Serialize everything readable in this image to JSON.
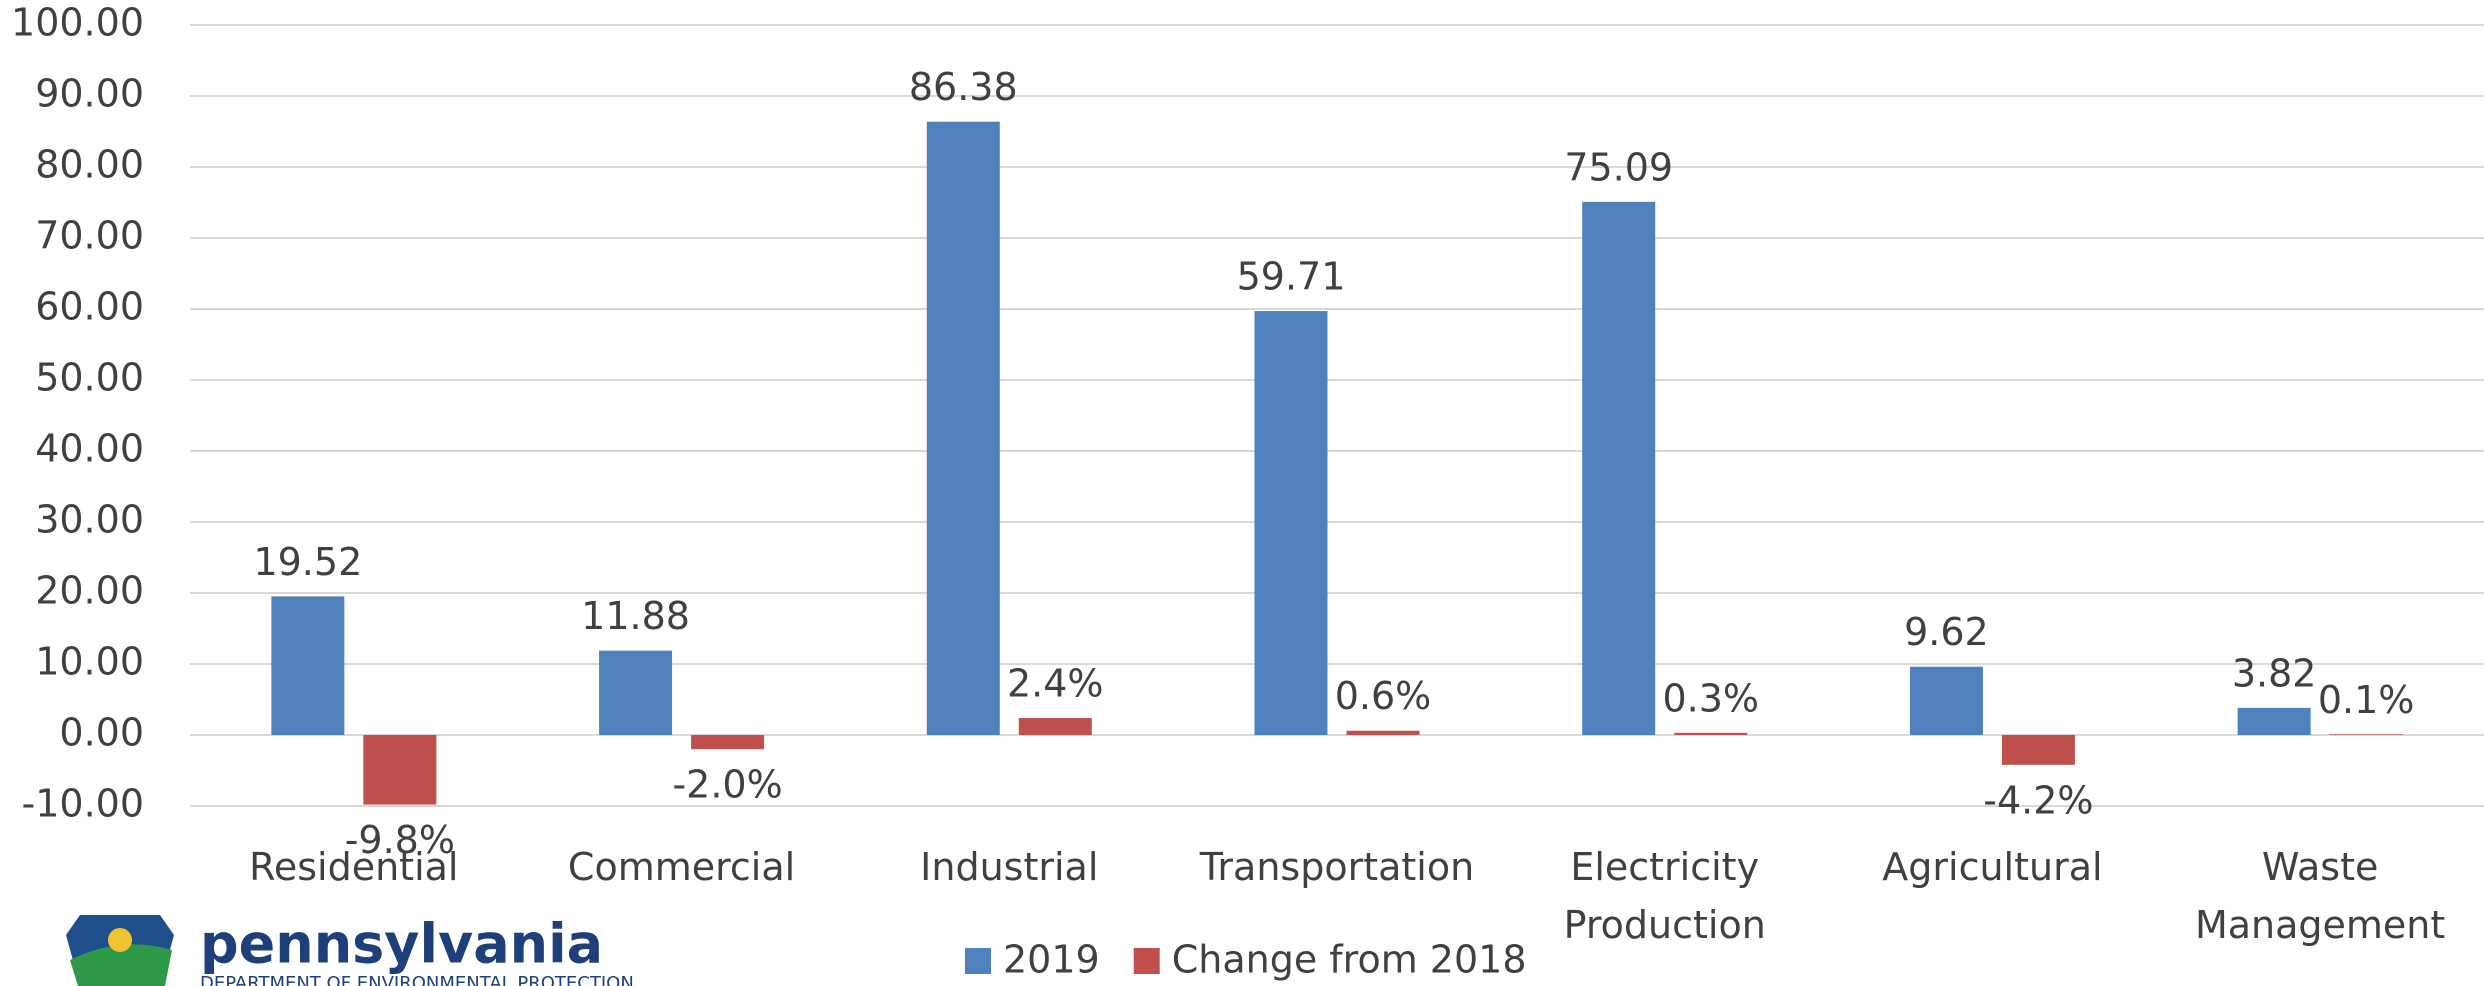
{
  "chart_data": {
    "type": "bar",
    "categories": [
      "Residential",
      "Commercial",
      "Industrial",
      "Transportation",
      "Electricity Production",
      "Agricultural",
      "Waste Management"
    ],
    "series": [
      {
        "name": "2019",
        "color": "#4f81bd",
        "values": [
          19.52,
          11.88,
          86.38,
          59.71,
          75.09,
          9.62,
          3.82
        ]
      },
      {
        "name": "Change from 2018",
        "color": "#c0504d",
        "values": [
          -9.8,
          -2.0,
          2.4,
          0.6,
          0.3,
          -4.2,
          0.1
        ],
        "value_labels": [
          "-9.8%",
          "-2.0%",
          "2.4%",
          "0.6%",
          "0.3%",
          "-4.2%",
          "0.1%"
        ]
      }
    ],
    "ylim": [
      -10,
      100
    ],
    "yticks": [
      {
        "value": -10,
        "label": "-10.00"
      },
      {
        "value": 0,
        "label": "0.00"
      },
      {
        "value": 10,
        "label": "10.00"
      },
      {
        "value": 20,
        "label": "20.00"
      },
      {
        "value": 30,
        "label": "30.00"
      },
      {
        "value": 40,
        "label": "40.00"
      },
      {
        "value": 50,
        "label": "50.00"
      },
      {
        "value": 60,
        "label": "60.00"
      },
      {
        "value": 70,
        "label": "70.00"
      },
      {
        "value": 80,
        "label": "80.00"
      },
      {
        "value": 90,
        "label": "90.00"
      },
      {
        "value": 100,
        "label": "100.00"
      }
    ],
    "grid": true,
    "legend": "bottom"
  },
  "logo": {
    "text": "pennsylvania",
    "subtext": "DEPARTMENT OF ENVIRONMENTAL PROTECTION"
  }
}
